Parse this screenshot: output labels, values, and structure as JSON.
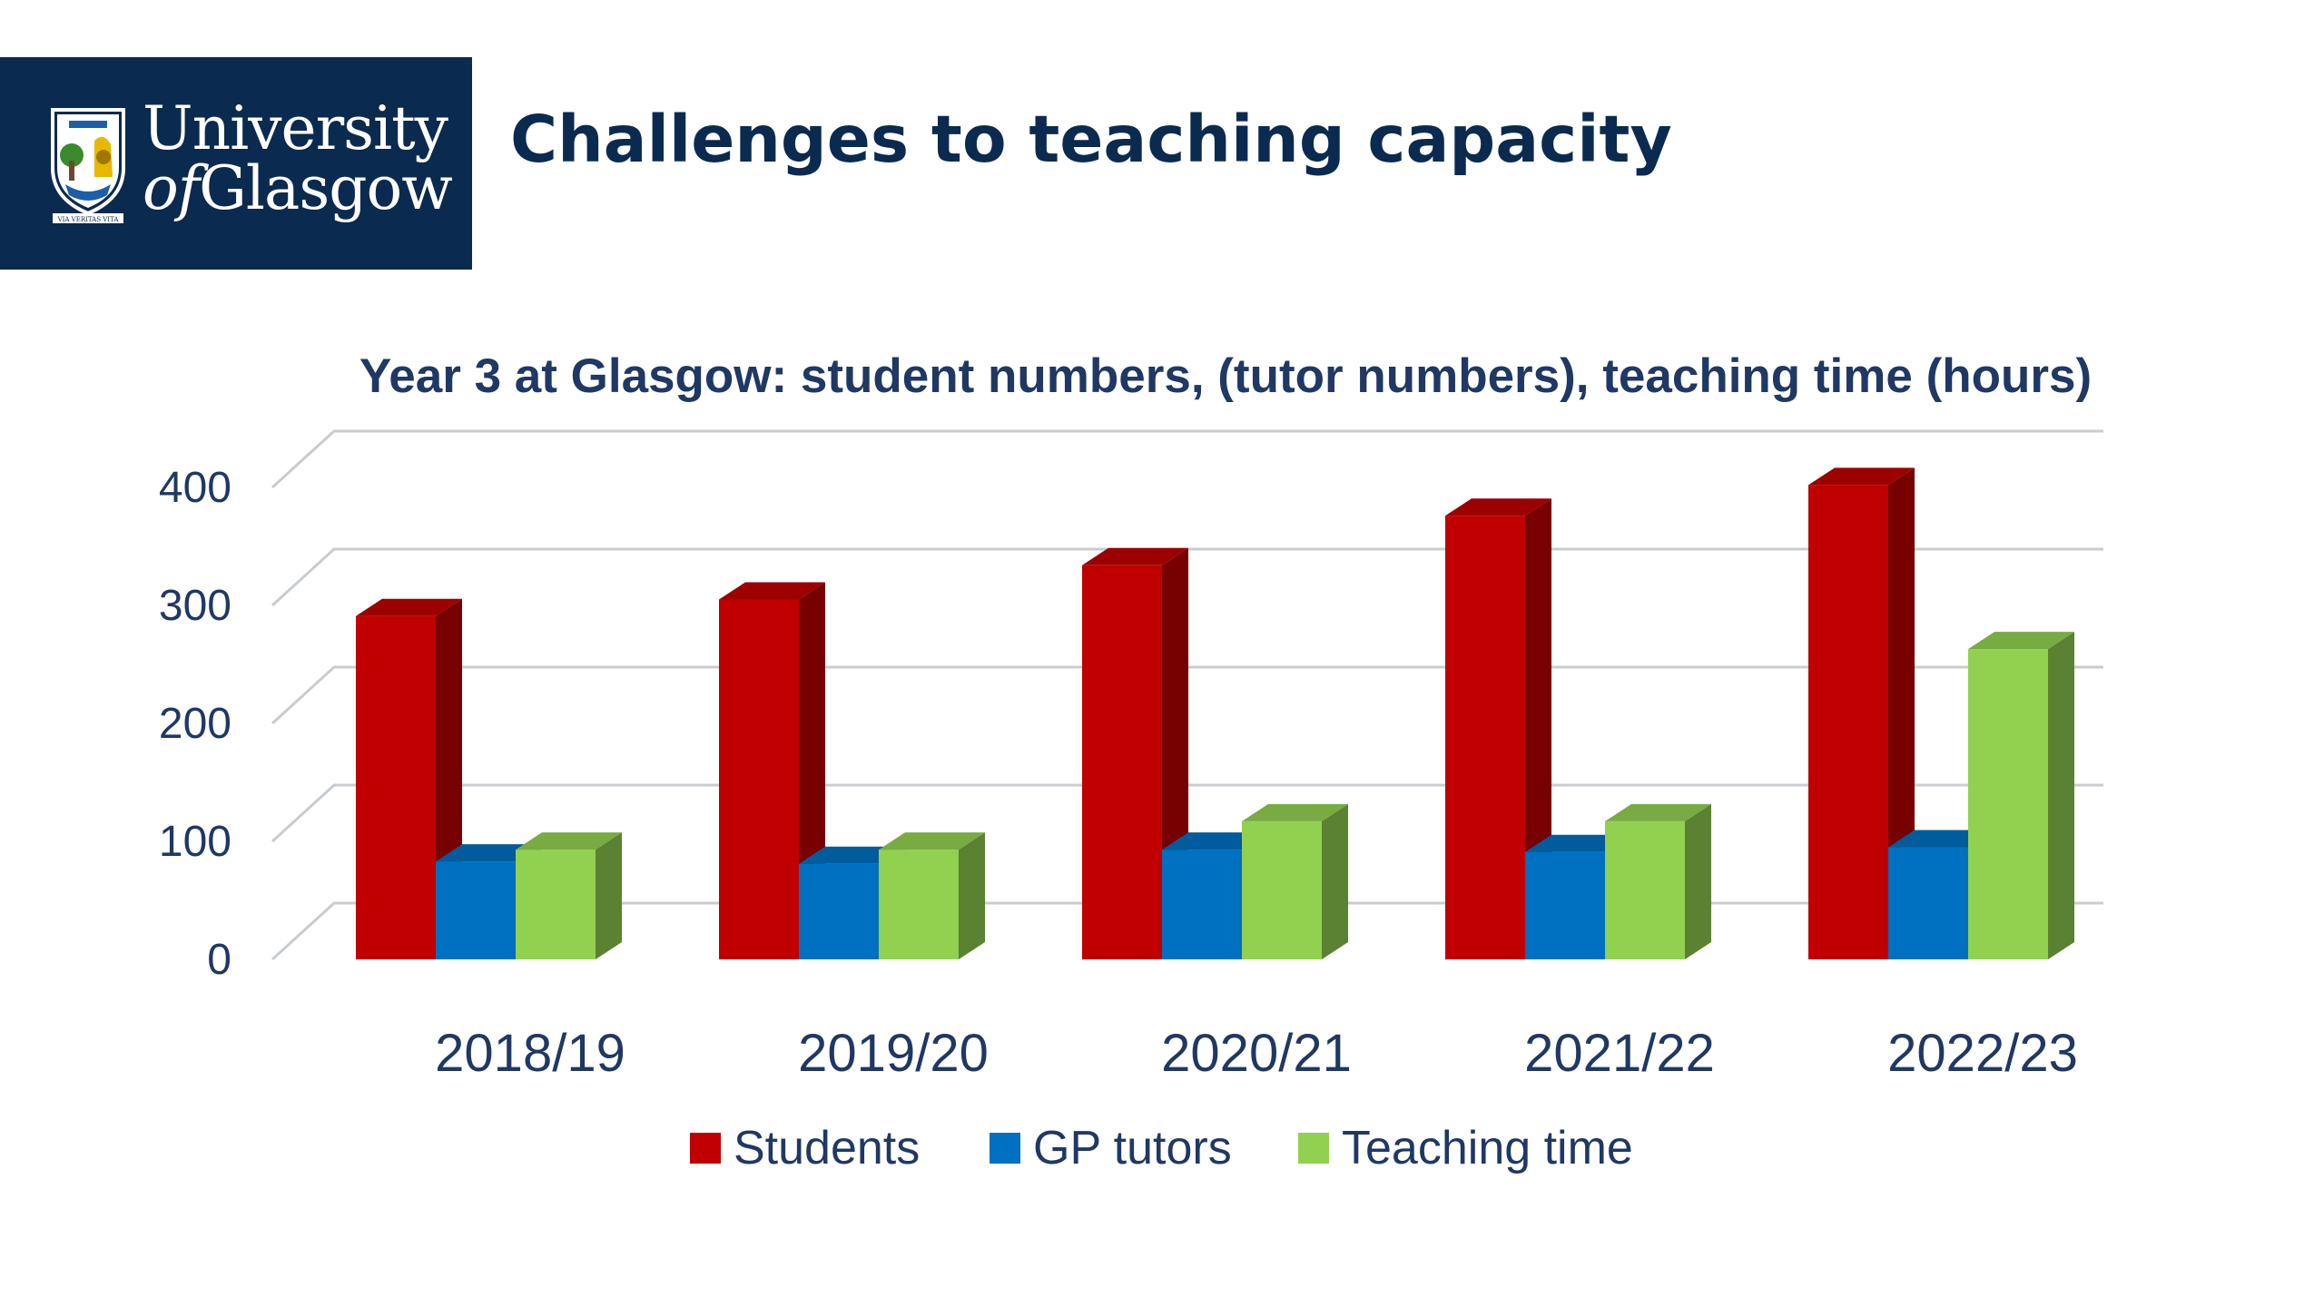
{
  "header": {
    "logo": {
      "line1": "University",
      "line2_prefix": "of",
      "line2_rest": "Glasgow",
      "motto": "VIA VERITAS VITA"
    },
    "title": "Challenges to teaching capacity",
    "brand_color": "#0b2a4f"
  },
  "chart_data": {
    "type": "bar",
    "title": "Year 3 at Glasgow: student numbers, (tutor numbers), teaching time (hours)",
    "categories": [
      "2018/19",
      "2019/20",
      "2020/21",
      "2021/22",
      "2022/23"
    ],
    "series": [
      {
        "name": "Students",
        "values": [
          291,
          305,
          334,
          376,
          402
        ],
        "color": "#c00000"
      },
      {
        "name": "GP tutors",
        "values": [
          83,
          81,
          93,
          91,
          95
        ],
        "color": "#0070c0"
      },
      {
        "name": "Teaching time",
        "values": [
          93,
          93,
          117,
          117,
          263
        ],
        "color": "#92d050"
      }
    ],
    "ylim": [
      0,
      400
    ],
    "yticks": [
      "0",
      "100",
      "200",
      "300",
      "400"
    ],
    "grid": true,
    "legend_position": "bottom",
    "style": "3d-clustered-column"
  }
}
